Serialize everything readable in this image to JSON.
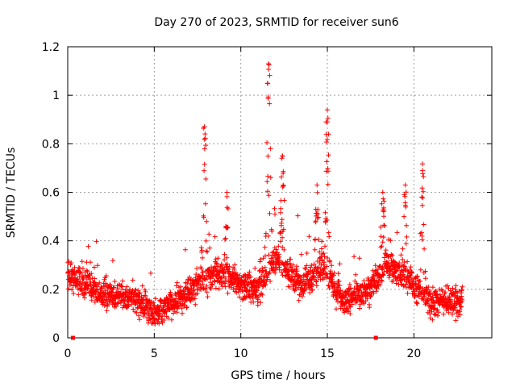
{
  "chart_data": {
    "type": "scatter",
    "title": "Day 270 of 2023, SRMTID for receiver sun6",
    "xlabel": "GPS time / hours",
    "ylabel": "SRMTID / TECUs",
    "xlim": [
      0,
      24.5
    ],
    "ylim": [
      0,
      1.2
    ],
    "xticks": [
      0,
      5,
      10,
      15,
      20
    ],
    "xtick_labels": [
      "0",
      "5",
      "10",
      "15",
      "20"
    ],
    "yticks": [
      0,
      0.2,
      0.4,
      0.6,
      0.8,
      1.0,
      1.2
    ],
    "ytick_labels": [
      "0",
      "0.2",
      "0.4",
      "0.6",
      "0.8",
      "1",
      "1.2"
    ],
    "grid": true,
    "marker": "+",
    "color": "#ff0000",
    "points_estimated_profile": {
      "baseline_trend": [
        [
          0,
          0.26
        ],
        [
          2,
          0.18
        ],
        [
          4,
          0.16
        ],
        [
          5,
          0.1
        ],
        [
          6,
          0.14
        ],
        [
          7.3,
          0.2
        ],
        [
          8.5,
          0.27
        ],
        [
          10,
          0.22
        ],
        [
          11,
          0.2
        ],
        [
          12,
          0.33
        ],
        [
          13.5,
          0.22
        ],
        [
          14.7,
          0.28
        ],
        [
          16,
          0.15
        ],
        [
          17.5,
          0.2
        ],
        [
          18.5,
          0.3
        ],
        [
          19.5,
          0.25
        ],
        [
          21,
          0.15
        ],
        [
          22.8,
          0.15
        ]
      ],
      "peaks": [
        [
          7.9,
          0.87
        ],
        [
          9.2,
          0.6
        ],
        [
          11.6,
          1.13
        ],
        [
          12.4,
          0.75
        ],
        [
          14.4,
          0.63
        ],
        [
          15.0,
          0.94
        ],
        [
          18.2,
          0.6
        ],
        [
          19.5,
          0.63
        ],
        [
          20.5,
          0.69
        ]
      ]
    },
    "low_markers": [
      0.3,
      17.8
    ]
  }
}
